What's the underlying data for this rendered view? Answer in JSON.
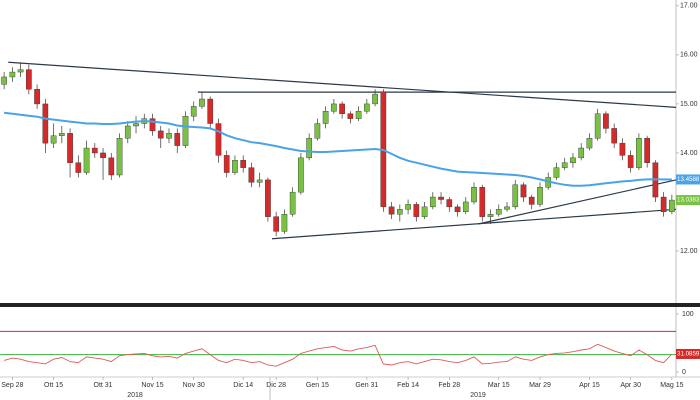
{
  "chart_data": {
    "type": "candlestick",
    "categories": [
      null,
      "Sep 28",
      null,
      null,
      null,
      null,
      "Ott 15",
      null,
      null,
      null,
      null,
      null,
      "Ott 31",
      null,
      null,
      null,
      null,
      null,
      "Nov 15",
      null,
      null,
      null,
      null,
      "Nov 30",
      null,
      null,
      null,
      null,
      null,
      "Dic 14",
      null,
      null,
      null,
      "Dic 28",
      null,
      null,
      null,
      null,
      "Gen 15",
      null,
      null,
      null,
      null,
      null,
      "Gen 31",
      null,
      null,
      null,
      null,
      "Feb 14",
      null,
      null,
      null,
      null,
      "Feb 28",
      null,
      null,
      null,
      null,
      null,
      "Mar 15",
      null,
      null,
      null,
      null,
      "Mar 29",
      null,
      null,
      null,
      null,
      null,
      "Apr 15",
      null,
      null,
      null,
      null,
      "Apr 30",
      null,
      null,
      null,
      null,
      "Mag 15"
    ],
    "year_labels": [
      "2018",
      "2019"
    ],
    "open": [
      15.4,
      15.55,
      15.65,
      15.7,
      15.3,
      15.0,
      14.2,
      14.35,
      14.4,
      13.8,
      13.6,
      14.1,
      14.0,
      13.9,
      13.55,
      14.3,
      14.55,
      14.6,
      14.7,
      14.45,
      14.3,
      14.4,
      14.15,
      14.75,
      14.95,
      15.1,
      14.6,
      13.95,
      13.6,
      13.85,
      13.7,
      13.4,
      13.45,
      12.7,
      12.4,
      12.75,
      13.2,
      13.9,
      14.3,
      14.6,
      14.85,
      15.0,
      14.8,
      14.7,
      14.85,
      15.0,
      15.25,
      12.9,
      12.75,
      12.85,
      12.95,
      12.7,
      12.9,
      13.1,
      13.05,
      12.9,
      12.8,
      13.0,
      13.3,
      12.7,
      12.75,
      12.85,
      12.9,
      13.35,
      13.1,
      12.95,
      13.3,
      13.5,
      13.7,
      13.8,
      13.9,
      14.1,
      14.3,
      14.8,
      14.5,
      14.2,
      13.95,
      13.7,
      14.3,
      13.8,
      13.1,
      12.8
    ],
    "high": [
      15.65,
      15.75,
      15.85,
      15.8,
      15.4,
      15.1,
      14.6,
      14.55,
      14.5,
      13.95,
      14.25,
      14.2,
      14.1,
      14.0,
      14.4,
      14.65,
      14.75,
      14.8,
      14.8,
      14.55,
      14.5,
      14.5,
      14.85,
      15.05,
      15.25,
      15.15,
      14.7,
      14.05,
      13.95,
      13.95,
      13.8,
      13.6,
      13.5,
      12.8,
      12.85,
      13.3,
      14.0,
      14.4,
      14.7,
      14.95,
      15.1,
      15.05,
      14.85,
      14.95,
      15.1,
      15.3,
      15.3,
      13.0,
      12.95,
      13.05,
      13.0,
      13.0,
      13.2,
      13.2,
      13.1,
      12.95,
      13.1,
      13.4,
      13.35,
      12.85,
      12.95,
      13.0,
      13.45,
      13.4,
      13.15,
      13.4,
      13.6,
      13.8,
      13.9,
      14.0,
      14.2,
      14.4,
      14.9,
      14.85,
      14.6,
      14.3,
      14.05,
      14.4,
      14.35,
      13.85,
      13.2,
      13.15
    ],
    "low": [
      15.3,
      15.45,
      15.55,
      15.2,
      14.9,
      14.0,
      14.1,
      14.2,
      13.5,
      13.5,
      13.55,
      13.9,
      13.45,
      13.45,
      13.5,
      14.2,
      14.4,
      14.5,
      14.35,
      14.1,
      14.2,
      14.0,
      14.1,
      14.65,
      14.9,
      14.5,
      13.8,
      13.5,
      13.55,
      13.6,
      13.3,
      13.3,
      12.6,
      12.3,
      12.35,
      12.7,
      13.15,
      13.85,
      14.25,
      14.5,
      14.8,
      14.7,
      14.6,
      14.65,
      14.8,
      14.95,
      12.8,
      12.65,
      12.6,
      12.75,
      12.6,
      12.65,
      12.85,
      12.95,
      12.8,
      12.7,
      12.75,
      12.95,
      12.6,
      12.55,
      12.7,
      12.8,
      12.85,
      13.0,
      12.85,
      12.9,
      13.25,
      13.45,
      13.65,
      13.7,
      13.85,
      14.05,
      14.25,
      14.4,
      14.1,
      13.85,
      13.6,
      13.65,
      13.7,
      13.0,
      12.7,
      12.75
    ],
    "close": [
      15.55,
      15.65,
      15.7,
      15.3,
      15.0,
      14.2,
      14.35,
      14.4,
      13.8,
      13.6,
      14.1,
      14.0,
      13.9,
      13.55,
      14.3,
      14.55,
      14.6,
      14.7,
      14.45,
      14.3,
      14.4,
      14.15,
      14.75,
      14.95,
      15.1,
      14.6,
      13.95,
      13.6,
      13.85,
      13.7,
      13.4,
      13.45,
      12.7,
      12.4,
      12.75,
      13.2,
      13.9,
      14.3,
      14.6,
      14.85,
      15.0,
      14.8,
      14.7,
      14.85,
      15.0,
      15.2,
      12.9,
      12.75,
      12.85,
      12.95,
      12.7,
      12.9,
      13.1,
      13.05,
      12.9,
      12.8,
      13.0,
      13.3,
      12.7,
      12.75,
      12.85,
      12.9,
      13.35,
      13.1,
      12.95,
      13.3,
      13.5,
      13.7,
      13.8,
      13.9,
      14.1,
      14.3,
      14.8,
      14.5,
      14.2,
      13.95,
      13.7,
      14.3,
      13.8,
      13.1,
      12.8,
      13.0383
    ],
    "ma": [
      14.82,
      14.8,
      14.78,
      14.76,
      14.74,
      14.7,
      14.68,
      14.66,
      14.64,
      14.62,
      14.6,
      14.6,
      14.59,
      14.59,
      14.6,
      14.62,
      14.64,
      14.65,
      14.64,
      14.62,
      14.6,
      14.56,
      14.54,
      14.53,
      14.52,
      14.5,
      14.44,
      14.36,
      14.3,
      14.26,
      14.22,
      14.2,
      14.17,
      14.14,
      14.1,
      14.07,
      14.04,
      14.03,
      14.02,
      14.02,
      14.03,
      14.04,
      14.05,
      14.06,
      14.07,
      14.08,
      14.06,
      13.98,
      13.9,
      13.84,
      13.8,
      13.76,
      13.72,
      13.68,
      13.65,
      13.62,
      13.61,
      13.6,
      13.59,
      13.58,
      13.57,
      13.56,
      13.55,
      13.53,
      13.5,
      13.46,
      13.42,
      13.38,
      13.35,
      13.33,
      13.33,
      13.34,
      13.36,
      13.38,
      13.4,
      13.42,
      13.43,
      13.45,
      13.46,
      13.46,
      13.46,
      13.4588
    ],
    "up_color": "#79c143",
    "down_color": "#d42a2a",
    "ma_color": "#4aa3e6",
    "ylim": [
      11.0,
      17.12
    ],
    "yticks": [
      {
        "value": 12,
        "label": "12.00"
      },
      {
        "value": 13,
        "label": "13.00"
      },
      {
        "value": 14,
        "label": "14.00"
      },
      {
        "value": 15,
        "label": "15.00"
      },
      {
        "value": 16,
        "label": "16.00"
      },
      {
        "value": 17,
        "label": "17.00"
      }
    ],
    "trendlines": [
      {
        "x": [
          1,
          82
        ],
        "y": [
          15.85,
          14.93
        ]
      },
      {
        "x": [
          24,
          82
        ],
        "y": [
          15.24,
          15.24
        ]
      },
      {
        "x": [
          33,
          82
        ],
        "y": [
          12.25,
          12.85
        ]
      },
      {
        "x": [
          58,
          82
        ],
        "y": [
          12.55,
          13.45
        ]
      }
    ],
    "rsi": [
      20,
      24,
      22,
      18,
      16,
      14,
      22,
      25,
      18,
      16,
      26,
      24,
      22,
      18,
      28,
      30,
      31,
      32,
      28,
      26,
      27,
      24,
      32,
      36,
      40,
      30,
      20,
      16,
      22,
      20,
      16,
      18,
      12,
      10,
      16,
      22,
      32,
      36,
      40,
      42,
      44,
      38,
      36,
      40,
      42,
      46,
      14,
      12,
      16,
      18,
      14,
      18,
      22,
      21,
      18,
      16,
      20,
      26,
      14,
      15,
      17,
      18,
      26,
      22,
      20,
      26,
      30,
      32,
      33,
      35,
      38,
      40,
      48,
      42,
      36,
      32,
      28,
      38,
      30,
      20,
      16,
      31.0859
    ],
    "rsi_color": "#e05a5a",
    "rsi_ylim": [
      0,
      100
    ],
    "rsi_yticks": [
      0,
      100
    ],
    "rsi_levels": [
      {
        "value": 70,
        "color": "#d42a2a"
      },
      {
        "value": 30,
        "color": "#3cb043"
      }
    ]
  }
}
